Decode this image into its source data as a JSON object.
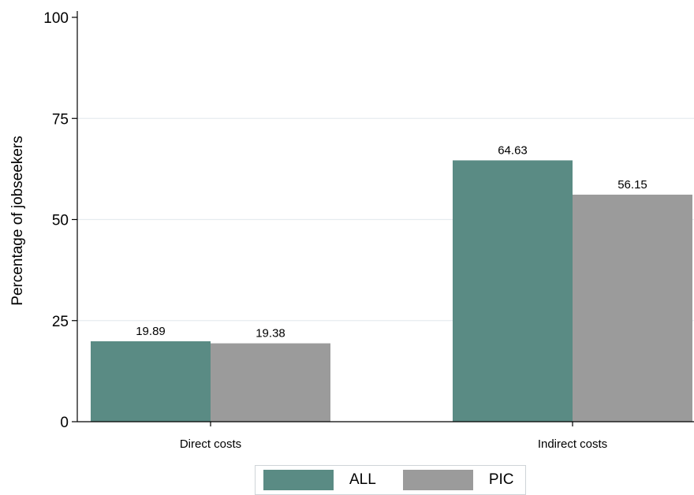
{
  "chart_data": {
    "type": "bar",
    "title": "",
    "xlabel": "",
    "ylabel": "Percentage of jobseekers",
    "ylim": [
      0,
      100
    ],
    "yticks": [
      0,
      25,
      50,
      75,
      100
    ],
    "grid": true,
    "legend_position": "bottom",
    "categories": [
      "Direct costs",
      "Indirect costs"
    ],
    "series": [
      {
        "name": "ALL",
        "color": "#5a8b84",
        "values": [
          19.89,
          64.63
        ],
        "labels": [
          "19.89",
          "64.63"
        ]
      },
      {
        "name": "PIC",
        "color": "#9b9b9b",
        "values": [
          19.38,
          56.15
        ],
        "labels": [
          "19.38",
          "56.15"
        ]
      }
    ]
  }
}
